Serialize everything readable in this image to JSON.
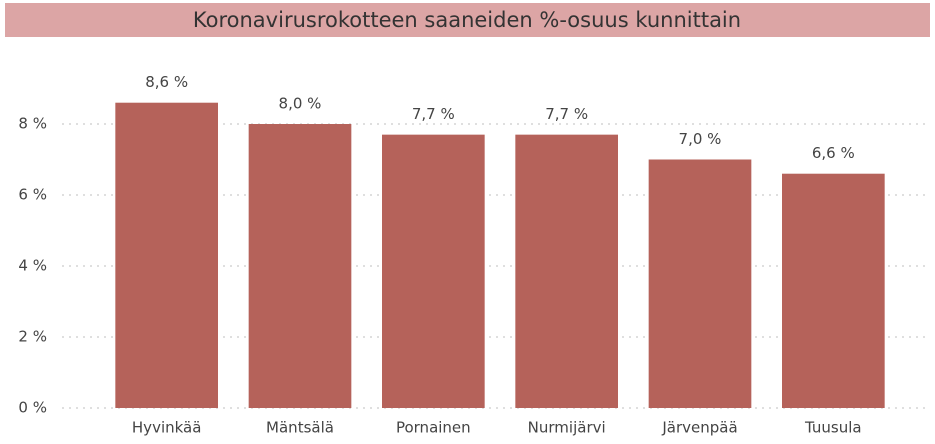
{
  "chart_data": {
    "type": "bar",
    "title": "Koronavirusrokotteen saaneiden %-osuus kunnittain",
    "categories": [
      "Hyvinkää",
      "Mäntsälä",
      "Pornainen",
      "Nurmijärvi",
      "Järvenpää",
      "Tuusula"
    ],
    "values": [
      8.6,
      8.0,
      7.7,
      7.7,
      7.0,
      6.6
    ],
    "value_labels": [
      "8,6 %",
      "8,0 %",
      "7,7 %",
      "7,7 %",
      "7,0 %",
      "6,6 %"
    ],
    "color": "#b5625a",
    "ylim": [
      0,
      10
    ],
    "yticks": [
      {
        "value": 0,
        "label": "0 %"
      },
      {
        "value": 2,
        "label": "2 %"
      },
      {
        "value": 4,
        "label": "4 %"
      },
      {
        "value": 6,
        "label": "6 %"
      },
      {
        "value": 8,
        "label": "8 %"
      }
    ],
    "grid": true
  }
}
